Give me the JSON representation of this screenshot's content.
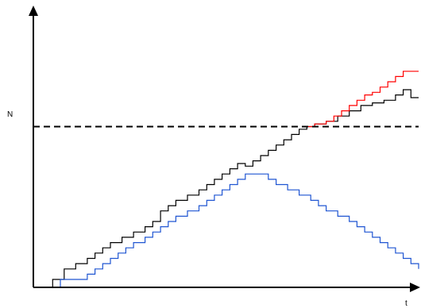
{
  "chart_data": {
    "type": "line",
    "title": "",
    "xlabel": "t",
    "ylabel": "N",
    "xlim": [
      0,
      100
    ],
    "ylim": [
      0,
      100
    ],
    "grid": false,
    "legend": "none",
    "threshold": {
      "y": 61,
      "style": "dashed",
      "color": "#000000"
    },
    "series": [
      {
        "color": "#000000",
        "step": "post",
        "x": [
          0,
          5,
          8,
          11,
          14,
          16,
          18,
          20,
          23,
          26,
          29,
          31,
          33,
          35,
          37,
          40,
          43,
          45,
          47,
          49,
          51,
          53,
          55,
          57,
          59,
          61,
          63,
          65,
          67,
          69,
          71,
          73,
          76,
          79,
          82,
          85,
          88,
          91,
          94,
          96,
          98,
          100
        ],
        "y": [
          0,
          3,
          7,
          9,
          11,
          13,
          15,
          17,
          19,
          21,
          23,
          25,
          29,
          31,
          33,
          35,
          37,
          39,
          41,
          43,
          45,
          47,
          46,
          48,
          50,
          52,
          54,
          56,
          58,
          60,
          61,
          62,
          63,
          65,
          67,
          69,
          70,
          71,
          73,
          75,
          72,
          72
        ]
      },
      {
        "color": "#ff0000",
        "step": "post",
        "x": [
          71,
          73,
          76,
          78,
          80,
          82,
          84,
          86,
          88,
          90,
          92,
          94,
          96,
          100
        ],
        "y": [
          61,
          62,
          63,
          65,
          67,
          69,
          71,
          73,
          74,
          76,
          78,
          80,
          82,
          82
        ]
      },
      {
        "color": "#1f55d2",
        "step": "post",
        "x": [
          0,
          7,
          14,
          16,
          18,
          20,
          22,
          24,
          26,
          29,
          31,
          33,
          35,
          37,
          40,
          43,
          45,
          47,
          49,
          51,
          53,
          55,
          58,
          61,
          63,
          66,
          69,
          72,
          74,
          76,
          79,
          82,
          84,
          86,
          88,
          90,
          92,
          94,
          96,
          98,
          100
        ],
        "y": [
          0,
          3,
          5,
          7,
          9,
          11,
          13,
          15,
          17,
          19,
          21,
          23,
          25,
          27,
          29,
          31,
          33,
          35,
          37,
          39,
          41,
          43,
          43,
          41,
          39,
          37,
          35,
          33,
          31,
          29,
          27,
          25,
          23,
          21,
          19,
          17,
          15,
          13,
          11,
          9,
          7
        ]
      }
    ]
  }
}
